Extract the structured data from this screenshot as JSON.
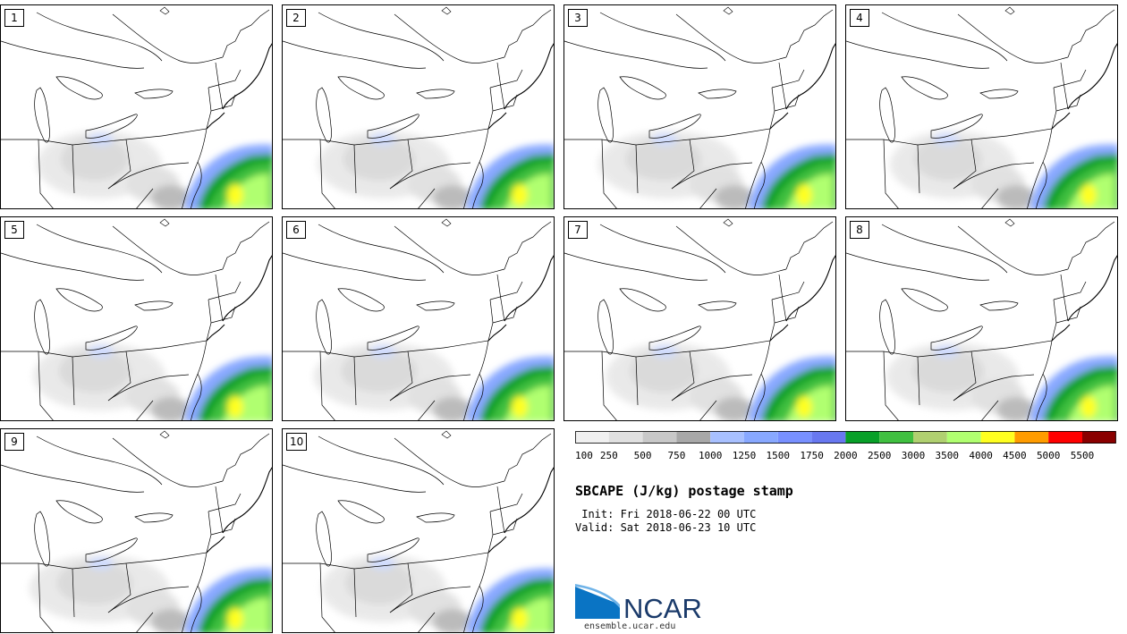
{
  "panels": [
    {
      "label": "1"
    },
    {
      "label": "2"
    },
    {
      "label": "3"
    },
    {
      "label": "4"
    },
    {
      "label": "5"
    },
    {
      "label": "6"
    },
    {
      "label": "7"
    },
    {
      "label": "8"
    },
    {
      "label": "9"
    },
    {
      "label": "10"
    }
  ],
  "colorbar": {
    "ticks": [
      "100",
      "250",
      "500",
      "750",
      "1000",
      "1250",
      "1500",
      "1750",
      "2000",
      "2500",
      "3000",
      "3500",
      "4000",
      "4500",
      "5000",
      "5500"
    ],
    "colors": [
      "#f0f0f0",
      "#e0e0e0",
      "#c8c8c8",
      "#a8a8a8",
      "#a8c0ff",
      "#88a8ff",
      "#7890ff",
      "#6878f0",
      "#08a028",
      "#40c040",
      "#b0d070",
      "#b0ff70",
      "#ffff20",
      "#ff9c00",
      "#ff0000",
      "#8a0000"
    ]
  },
  "title": "SBCAPE (J/kg) postage stamp",
  "init_line": " Init: Fri 2018-06-22 00 UTC",
  "valid_line": "Valid: Sat 2018-06-23 10 UTC",
  "logo": {
    "text": "NCAR",
    "url": "ensemble.ucar.edu",
    "color": "#1a3a6a"
  }
}
